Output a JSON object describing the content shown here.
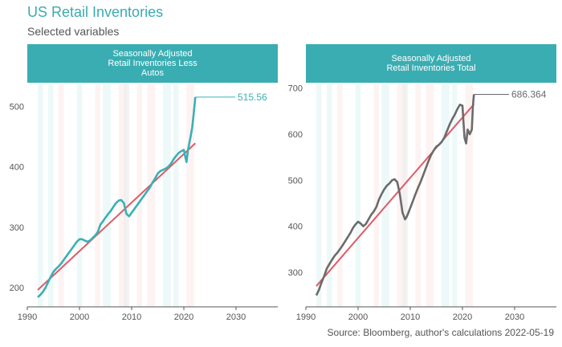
{
  "header": {
    "title": "US Retail Inventories",
    "subtitle": "Selected variables"
  },
  "footer": {
    "source": "Source: Bloomberg, author's calculations 2022-05-19"
  },
  "colors": {
    "accent": "#3aabb0",
    "series_left": "#3ab0b4",
    "series_right": "#6b6b6b",
    "trend": "#e05a66",
    "band_teal": "#e6f6f5",
    "band_pink": "#fdeeee",
    "band_grey": "#ececec"
  },
  "chart_data": [
    {
      "type": "line",
      "panel_title_lines": [
        "Seasonally Adjusted",
        "Retail Inventories Less",
        "Autos"
      ],
      "xlim": [
        1990,
        2038
      ],
      "ylim": [
        168,
        538
      ],
      "x_ticks": [
        1990,
        2000,
        2010,
        2020,
        2030
      ],
      "y_ticks": [
        200,
        300,
        400,
        500
      ],
      "last_value_label": "515.56",
      "series": [
        {
          "x": [
            1992.0,
            1992.5,
            1993.0,
            1993.5,
            1994.0,
            1994.5,
            1995.0,
            1995.5,
            1996.0,
            1996.5,
            1997.0,
            1997.5,
            1998.0,
            1998.5,
            1999.0,
            1999.5,
            2000.0,
            2000.5,
            2001.0,
            2001.5,
            2002.0,
            2002.5,
            2003.0,
            2003.5,
            2004.0,
            2004.5,
            2005.0,
            2005.5,
            2006.0,
            2006.5,
            2007.0,
            2007.5,
            2008.0,
            2008.5,
            2009.0,
            2009.5,
            2010.0,
            2010.5,
            2011.0,
            2011.5,
            2012.0,
            2012.5,
            2013.0,
            2013.5,
            2014.0,
            2014.5,
            2015.0,
            2015.5,
            2016.0,
            2016.5,
            2017.0,
            2017.5,
            2018.0,
            2018.5,
            2019.0,
            2019.5,
            2020.0,
            2020.3,
            2020.5,
            2020.8,
            2021.0,
            2021.3,
            2021.6,
            2021.9,
            2022.2
          ],
          "y": [
            184,
            188,
            193,
            200,
            209,
            218,
            226,
            231,
            235,
            240,
            246,
            252,
            258,
            264,
            270,
            276,
            280,
            280,
            278,
            276,
            278,
            282,
            286,
            292,
            304,
            310,
            316,
            322,
            327,
            334,
            340,
            344,
            345,
            340,
            322,
            318,
            324,
            330,
            336,
            342,
            348,
            354,
            360,
            366,
            374,
            381,
            389,
            393,
            395,
            397,
            400,
            405,
            412,
            418,
            423,
            426,
            428,
            416,
            408,
            428,
            437,
            450,
            465,
            490,
            515.56
          ]
        }
      ],
      "trend_line": {
        "x": [
          1992,
          2022.2
        ],
        "y": [
          196,
          439
        ]
      }
    },
    {
      "type": "line",
      "panel_title_lines": [
        "Seasonally Adjusted",
        "Retail Inventories Total"
      ],
      "xlim": [
        1990,
        2038
      ],
      "ylim": [
        225,
        710
      ],
      "x_ticks": [
        1990,
        2000,
        2010,
        2020,
        2030
      ],
      "y_ticks": [
        300,
        400,
        500,
        600,
        700
      ],
      "last_value_label": "686.364",
      "series": [
        {
          "x": [
            1992.0,
            1992.5,
            1993.0,
            1993.5,
            1994.0,
            1994.5,
            1995.0,
            1995.5,
            1996.0,
            1996.5,
            1997.0,
            1997.5,
            1998.0,
            1998.5,
            1999.0,
            1999.5,
            2000.0,
            2000.5,
            2001.0,
            2001.5,
            2002.0,
            2002.5,
            2003.0,
            2003.5,
            2004.0,
            2004.5,
            2005.0,
            2005.5,
            2006.0,
            2006.5,
            2007.0,
            2007.5,
            2008.0,
            2008.5,
            2009.0,
            2009.3,
            2009.6,
            2010.0,
            2010.5,
            2011.0,
            2011.5,
            2012.0,
            2012.5,
            2013.0,
            2013.5,
            2014.0,
            2014.5,
            2015.0,
            2015.5,
            2016.0,
            2016.5,
            2017.0,
            2017.5,
            2018.0,
            2018.5,
            2019.0,
            2019.5,
            2020.0,
            2020.2,
            2020.4,
            2020.7,
            2021.0,
            2021.4,
            2021.8,
            2022.0,
            2022.2
          ],
          "y": [
            250,
            262,
            278,
            292,
            308,
            318,
            327,
            336,
            342,
            350,
            358,
            367,
            376,
            385,
            396,
            404,
            410,
            406,
            400,
            405,
            415,
            425,
            432,
            442,
            458,
            470,
            480,
            488,
            493,
            500,
            502,
            496,
            470,
            430,
            415,
            420,
            428,
            440,
            455,
            470,
            484,
            497,
            512,
            527,
            542,
            555,
            565,
            573,
            577,
            583,
            592,
            606,
            620,
            632,
            642,
            654,
            664,
            662,
            626,
            592,
            580,
            610,
            600,
            610,
            660,
            686.364
          ]
        }
      ],
      "trend_line": {
        "x": [
          1992,
          2022.2
        ],
        "y": [
          270,
          665
        ]
      }
    }
  ]
}
